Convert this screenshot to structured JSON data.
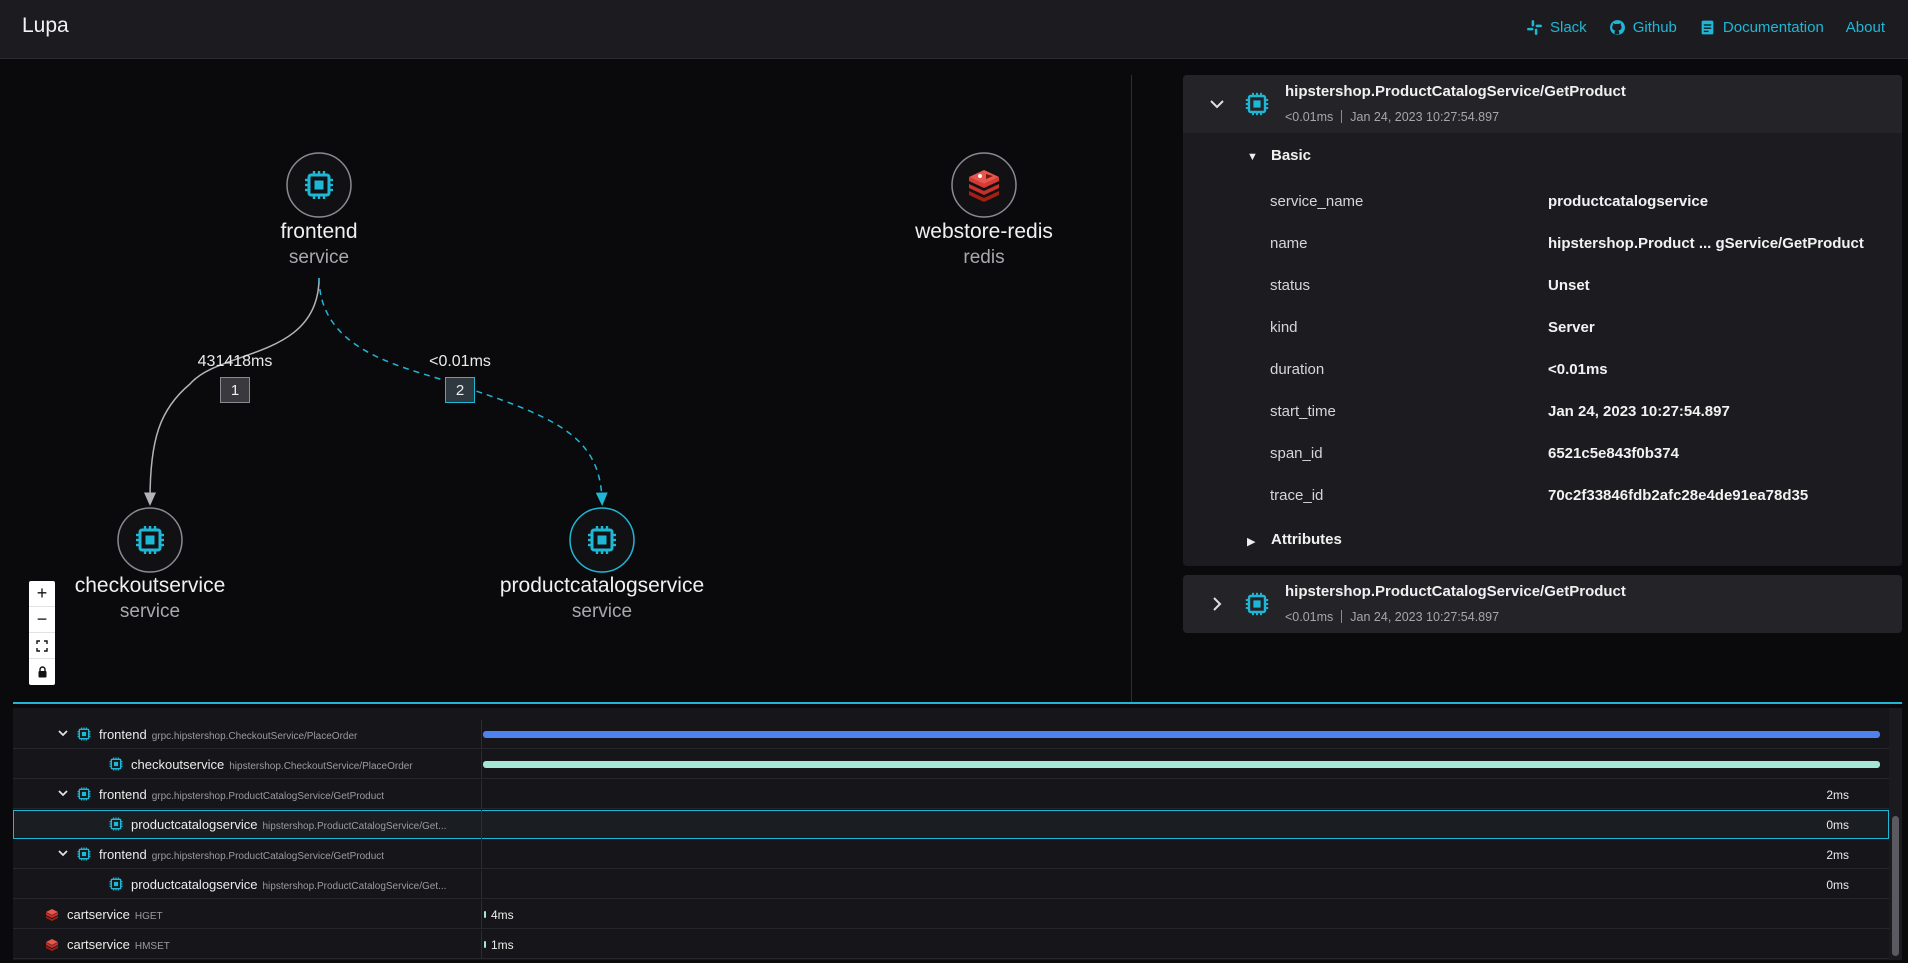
{
  "app": {
    "title": "Lupa"
  },
  "nav": {
    "slack": "Slack",
    "github": "Github",
    "documentation": "Documentation",
    "about": "About"
  },
  "colors": {
    "accent": "#1fb7d6",
    "bar_blue": "#4f82ee",
    "bar_teal": "#a6e6d6",
    "redis_red": "#c9302c"
  },
  "graph": {
    "nodes": [
      {
        "id": "frontend",
        "name": "frontend",
        "type": "service",
        "icon": "cpu-icon"
      },
      {
        "id": "webstore-redis",
        "name": "webstore-redis",
        "type": "redis",
        "icon": "redis-icon"
      },
      {
        "id": "checkoutservice",
        "name": "checkoutservice",
        "type": "service",
        "icon": "cpu-icon"
      },
      {
        "id": "productcatalogservice",
        "name": "productcatalogservice",
        "type": "service",
        "icon": "cpu-icon"
      }
    ],
    "edges": [
      {
        "from": "frontend",
        "to": "checkoutservice",
        "duration": "431418ms",
        "badge": "1"
      },
      {
        "from": "frontend",
        "to": "productcatalogservice",
        "duration": "<0.01ms",
        "badge": "2"
      }
    ]
  },
  "zoom_controls": {
    "zoom_in": "+",
    "zoom_out": "−"
  },
  "spans": [
    {
      "title": "hipstershop.ProductCatalogService/GetProduct",
      "duration": "<0.01ms",
      "timestamp": "Jan 24, 2023 10:27:54.897",
      "expanded": true,
      "basic_label": "Basic",
      "attributes_label": "Attributes",
      "basic": [
        {
          "key": "service_name",
          "value": "productcatalogservice"
        },
        {
          "key": "name",
          "value": "hipstershop.Product ... gService/GetProduct"
        },
        {
          "key": "status",
          "value": "Unset"
        },
        {
          "key": "kind",
          "value": "Server"
        },
        {
          "key": "duration",
          "value": "<0.01ms"
        },
        {
          "key": "start_time",
          "value": "Jan 24, 2023 10:27:54.897"
        },
        {
          "key": "span_id",
          "value": "6521c5e843f0b374"
        },
        {
          "key": "trace_id",
          "value": "70c2f33846fdb2afc28e4de91ea78d35"
        }
      ]
    },
    {
      "title": "hipstershop.ProductCatalogService/GetProduct",
      "duration": "<0.01ms",
      "timestamp": "Jan 24, 2023 10:27:54.897",
      "expanded": false
    }
  ],
  "timeline": [
    {
      "service": "frontend",
      "operation": "grpc.hipstershop.CheckoutService/PlaceOrder",
      "depth": 1,
      "caret": true,
      "icon": "cpu-icon",
      "bar_fraction": 1.0,
      "bar_color": "blue",
      "duration": ""
    },
    {
      "service": "checkoutservice",
      "operation": "hipstershop.CheckoutService/PlaceOrder",
      "depth": 2,
      "caret": false,
      "icon": "cpu-icon",
      "bar_fraction": 1.0,
      "bar_color": "teal",
      "duration": ""
    },
    {
      "service": "frontend",
      "operation": "grpc.hipstershop.ProductCatalogService/GetProduct",
      "depth": 1,
      "caret": true,
      "icon": "cpu-icon",
      "bar_fraction": 0,
      "bar_color": "",
      "duration": "2ms"
    },
    {
      "service": "productcatalogservice",
      "operation": "hipstershop.ProductCatalogService/Get...",
      "depth": 2,
      "caret": false,
      "icon": "cpu-icon",
      "bar_fraction": 0,
      "bar_color": "",
      "duration": "0ms",
      "selected": true
    },
    {
      "service": "frontend",
      "operation": "grpc.hipstershop.ProductCatalogService/GetProduct",
      "depth": 1,
      "caret": true,
      "icon": "cpu-icon",
      "bar_fraction": 0,
      "bar_color": "",
      "duration": "2ms"
    },
    {
      "service": "productcatalogservice",
      "operation": "hipstershop.ProductCatalogService/Get...",
      "depth": 2,
      "caret": false,
      "icon": "cpu-icon",
      "bar_fraction": 0,
      "bar_color": "",
      "duration": "0ms"
    },
    {
      "service": "cartservice",
      "operation": "HGET",
      "depth": 0,
      "caret": false,
      "icon": "redis-icon",
      "bar_fraction": 0,
      "bar_color": "",
      "duration": "4ms",
      "duration_left": true
    },
    {
      "service": "cartservice",
      "operation": "HMSET",
      "depth": 0,
      "caret": false,
      "icon": "redis-icon",
      "bar_fraction": 0,
      "bar_color": "",
      "duration": "1ms",
      "duration_left": true
    }
  ]
}
